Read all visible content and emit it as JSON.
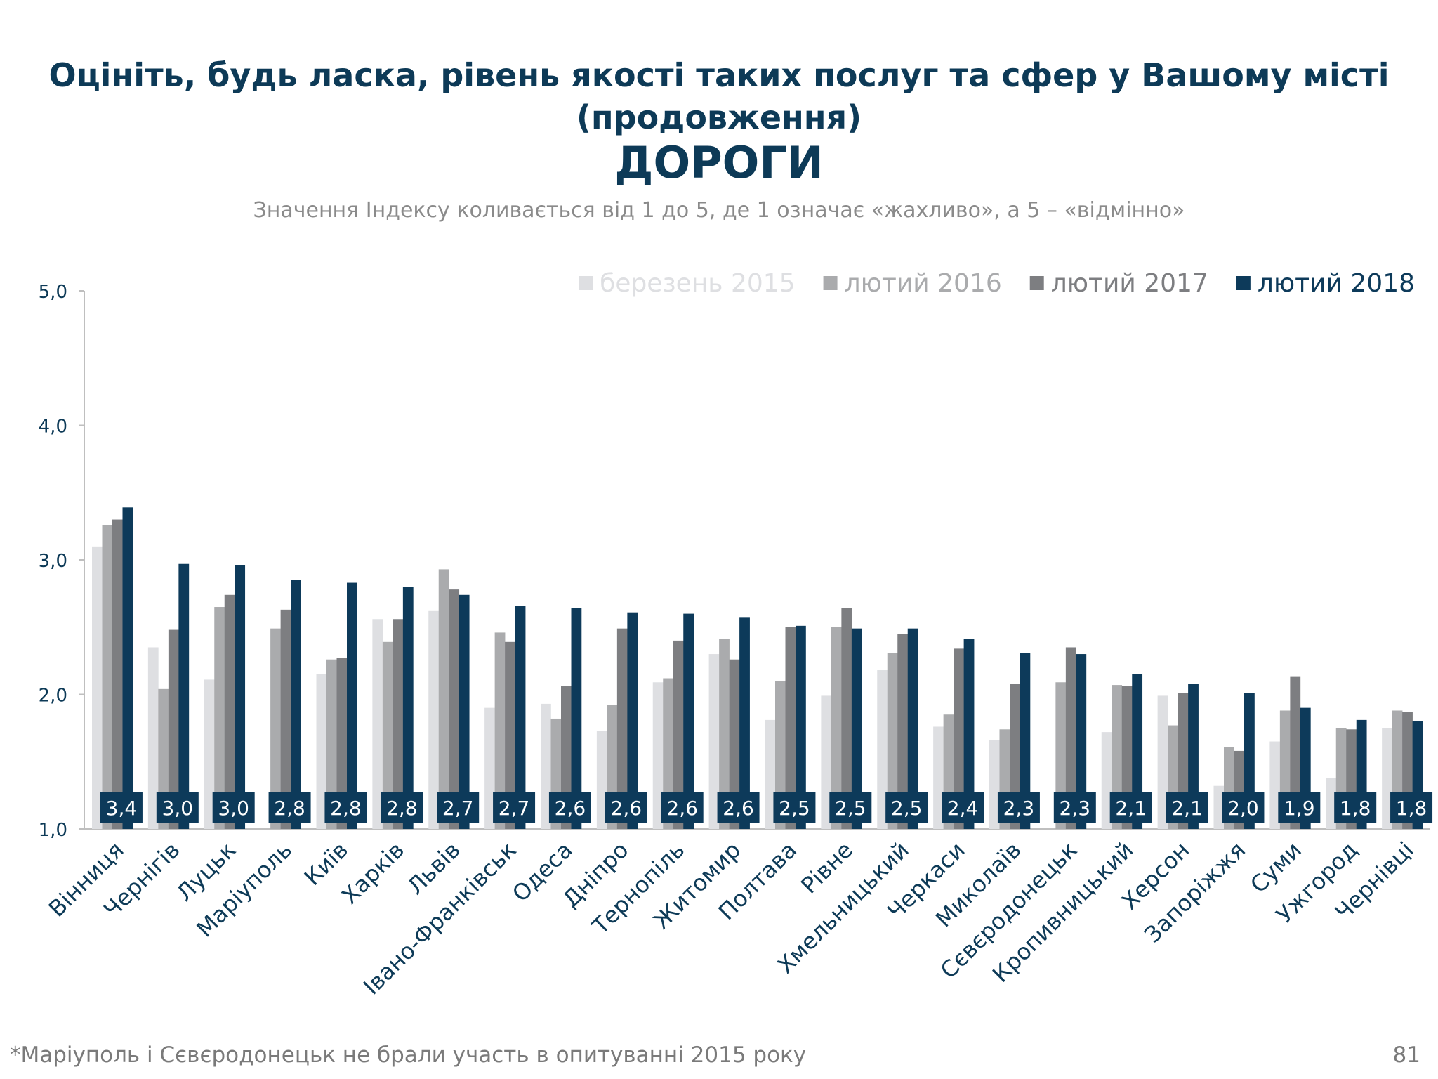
{
  "title": {
    "line1": "Оцініть, будь ласка, рівень якості таких послуг та сфер у Вашому місті",
    "line2": "(продовження)",
    "main": "ДОРОГИ"
  },
  "subtitle": "Значення Індексу коливається від 1 до 5, де 1 означає «жахливо», а 5 – «відмінно»",
  "footnote": "*Маріуполь і Сєвєродонецьк не брали участь в опитуванні 2015 року",
  "page_number": "81",
  "chart_data": {
    "type": "bar",
    "title": "ДОРОГИ",
    "xlabel": "",
    "ylabel": "",
    "ylim": [
      1.0,
      5.0
    ],
    "yticks": [
      "1,0",
      "2,0",
      "3,0",
      "4,0",
      "5,0"
    ],
    "legend_position": "top-right",
    "categories": [
      "Вінниця",
      "Чернігів",
      "Луцьк",
      "Маріуполь",
      "Київ",
      "Харків",
      "Львів",
      "Івано-Франківськ",
      "Одеса",
      "Дніпро",
      "Тернопіль",
      "Житомир",
      "Полтава",
      "Рівне",
      "Хмельницький",
      "Черкаси",
      "Миколаїв",
      "Сєвєродонецьк",
      "Кропивницький",
      "Херсон",
      "Запоріжжя",
      "Суми",
      "Ужгород",
      "Чернівці"
    ],
    "series": [
      {
        "name": "березень 2015",
        "color": "#dedfe2",
        "values": [
          3.1,
          2.35,
          2.11,
          null,
          2.15,
          2.56,
          2.62,
          1.9,
          1.93,
          1.73,
          2.09,
          2.3,
          1.81,
          1.99,
          2.18,
          1.76,
          1.66,
          null,
          1.72,
          1.99,
          1.32,
          1.65,
          1.38,
          1.75
        ]
      },
      {
        "name": "лютий 2016",
        "color": "#aaabad",
        "values": [
          3.26,
          2.04,
          2.65,
          2.49,
          2.26,
          2.39,
          2.93,
          2.46,
          1.82,
          1.92,
          2.12,
          2.41,
          2.1,
          2.5,
          2.31,
          1.85,
          1.74,
          2.09,
          2.07,
          1.77,
          1.61,
          1.88,
          1.75,
          1.88
        ]
      },
      {
        "name": "лютий 2017",
        "color": "#7d7e81",
        "values": [
          3.3,
          2.48,
          2.74,
          2.63,
          2.27,
          2.56,
          2.78,
          2.39,
          2.06,
          2.49,
          2.4,
          2.26,
          2.5,
          2.64,
          2.45,
          2.34,
          2.08,
          2.35,
          2.06,
          2.01,
          1.58,
          2.13,
          1.74,
          1.87
        ]
      },
      {
        "name": "лютий 2018",
        "color": "#0d3a5a",
        "values": [
          3.39,
          2.97,
          2.96,
          2.85,
          2.83,
          2.8,
          2.74,
          2.66,
          2.64,
          2.61,
          2.6,
          2.57,
          2.51,
          2.49,
          2.49,
          2.41,
          2.31,
          2.3,
          2.15,
          2.08,
          2.01,
          1.9,
          1.81,
          1.8
        ]
      }
    ],
    "data_labels": [
      "3,4",
      "3,0",
      "3,0",
      "2,8",
      "2,8",
      "2,8",
      "2,7",
      "2,7",
      "2,6",
      "2,6",
      "2,6",
      "2,6",
      "2,5",
      "2,5",
      "2,5",
      "2,4",
      "2,3",
      "2,3",
      "2,1",
      "2,1",
      "2,0",
      "1,9",
      "1,8",
      "1,8"
    ]
  }
}
